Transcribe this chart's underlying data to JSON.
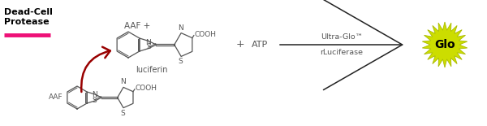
{
  "bg_color": "#ffffff",
  "dead_cell_label": "Dead-Cell\nProtease",
  "underline_color": "#ee1177",
  "aaf_plus_label": "AAF +",
  "luciferin_label": "luciferin",
  "atp_label": "ATP",
  "plus_label": "+",
  "ultra_glo_label": "Ultra-Glo™",
  "rluciferase_label": "rLuciferase",
  "glo_label": "Glo",
  "arrow_color_red": "#990000",
  "arrow_color_black": "#222222",
  "glo_fill_color": "#ccdd00",
  "glo_edge_color": "#aabb00",
  "mol_color": "#555555",
  "cooh_label": "COOH",
  "n_label": "N",
  "s_label": "S",
  "aaf_label": "AAF"
}
